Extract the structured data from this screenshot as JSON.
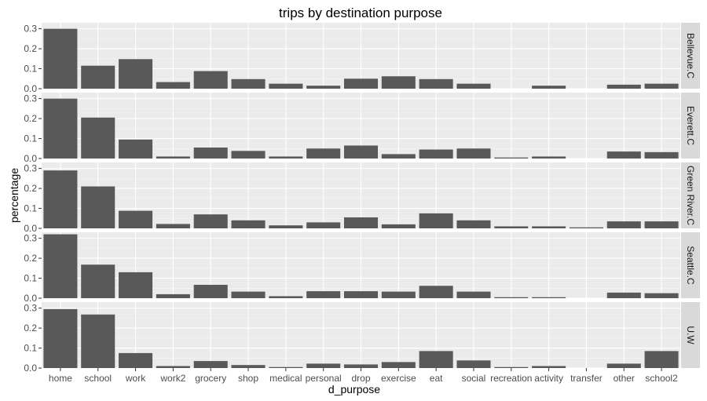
{
  "chart_data": {
    "type": "bar",
    "title": "trips by destination purpose",
    "xlabel": "d_purpose",
    "ylabel": "percentage",
    "categories": [
      "home",
      "school",
      "work",
      "work2",
      "grocery",
      "shop",
      "medical",
      "personal",
      "drop",
      "exercise",
      "eat",
      "social",
      "recreation",
      "activity",
      "transfer",
      "other",
      "school2"
    ],
    "ylim": [
      0,
      0.33
    ],
    "yticks": [
      0.0,
      0.1,
      0.2,
      0.3
    ],
    "ytick_labels": [
      "0.0",
      "0.1",
      "0.2",
      "0.3"
    ],
    "facet_layout": "rows",
    "grid": true,
    "panel_background": "#ebebeb",
    "strip_background": "#d9d9d9",
    "bar_color": "#595959",
    "series": [
      {
        "name": "Bellevue.C",
        "values": [
          0.3,
          0.115,
          0.148,
          0.033,
          0.088,
          0.048,
          0.025,
          0.015,
          0.05,
          0.062,
          0.048,
          0.025,
          0.0,
          0.015,
          0.0,
          0.02,
          0.025
        ]
      },
      {
        "name": "Everett.C",
        "values": [
          0.3,
          0.205,
          0.095,
          0.01,
          0.055,
          0.038,
          0.01,
          0.05,
          0.065,
          0.022,
          0.045,
          0.05,
          0.005,
          0.01,
          0.0,
          0.035,
          0.032
        ]
      },
      {
        "name": "Green River.C",
        "values": [
          0.29,
          0.21,
          0.088,
          0.022,
          0.07,
          0.04,
          0.015,
          0.03,
          0.055,
          0.02,
          0.075,
          0.04,
          0.01,
          0.01,
          0.005,
          0.035,
          0.035
        ]
      },
      {
        "name": "Seattle.C",
        "values": [
          0.32,
          0.168,
          0.13,
          0.02,
          0.067,
          0.033,
          0.01,
          0.035,
          0.035,
          0.033,
          0.062,
          0.033,
          0.005,
          0.005,
          0.0,
          0.028,
          0.025
        ]
      },
      {
        "name": "U.W",
        "values": [
          0.295,
          0.268,
          0.075,
          0.01,
          0.035,
          0.015,
          0.005,
          0.022,
          0.018,
          0.03,
          0.085,
          0.038,
          0.005,
          0.01,
          0.0,
          0.022,
          0.085
        ]
      }
    ]
  }
}
